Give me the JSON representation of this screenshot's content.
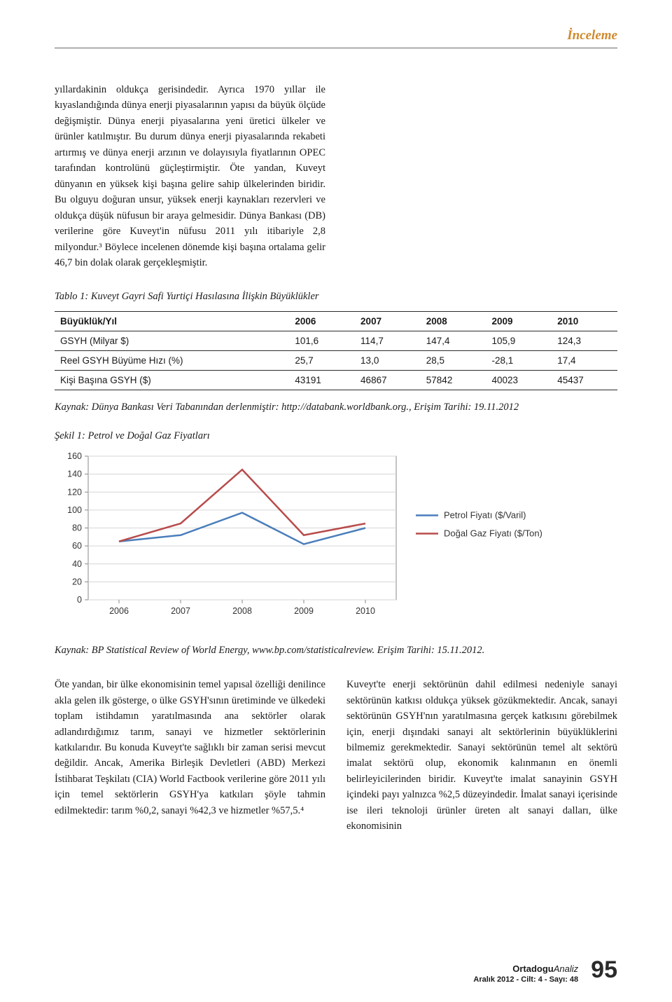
{
  "section_tag": "İnceleme",
  "para_top": "yıllardakinin oldukça gerisindedir. Ayrıca 1970 yıllar ile kıyaslandığında dünya enerji piyasalarının yapısı da büyük ölçüde değişmiştir. Dünya enerji piyasalarına yeni üretici ülkeler ve ürünler katılmıştır. Bu durum dünya enerji piyasalarında rekabeti artırmış ve dünya enerji arzının ve dolayısıyla fiyatlarının OPEC tarafından kontrolünü güçleştirmiştir. Öte yandan, Kuveyt dünyanın en yüksek kişi başına gelire sahip ülkelerinden biridir. Bu olguyu doğuran unsur, yüksek enerji kaynakları rezervleri ve oldukça düşük nüfusun bir araya gelmesidir. Dünya Bankası (DB) verilerine göre Kuveyt'in nüfusu 2011 yılı itibariyle 2,8 milyondur.³ Böylece incelenen dönemde kişi başına ortalama gelir 46,7 bin dolak olarak gerçekleşmiştir.",
  "table1": {
    "title": "Tablo 1: Kuveyt Gayri Safi Yurtiçi Hasılasına İlişkin Büyüklükler",
    "header_label": "Büyüklük/Yıl",
    "years": [
      "2006",
      "2007",
      "2008",
      "2009",
      "2010"
    ],
    "rows": [
      {
        "label": "GSYH (Milyar $)",
        "vals": [
          "101,6",
          "114,7",
          "147,4",
          "105,9",
          "124,3"
        ]
      },
      {
        "label": "Reel GSYH Büyüme Hızı (%)",
        "vals": [
          "25,7",
          "13,0",
          "28,5",
          "-28,1",
          "17,4"
        ]
      },
      {
        "label": "Kişi Başına GSYH ($)",
        "vals": [
          "43191",
          "46867",
          "57842",
          "40023",
          "45437"
        ]
      }
    ],
    "source": "Kaynak: Dünya Bankası Veri Tabanından derlenmiştir: http://databank.worldbank.org., Erişim Tarihi: 19.11.2012"
  },
  "figure1": {
    "title": "Şekil 1: Petrol ve Doğal Gaz Fiyatları",
    "type": "line",
    "x_categories": [
      "2006",
      "2007",
      "2008",
      "2009",
      "2010"
    ],
    "y_ticks": [
      0,
      20,
      40,
      60,
      80,
      100,
      120,
      140,
      160
    ],
    "ylim": [
      0,
      160
    ],
    "series": [
      {
        "name": "Petrol Fiyatı ($/Varil)",
        "color": "#4a7ebb",
        "width": 2.5,
        "values": [
          65,
          72,
          97,
          62,
          80
        ]
      },
      {
        "name": "Doğal Gaz Fiyatı ($/Ton)",
        "color": "#b84b4b",
        "width": 2.5,
        "values": [
          65,
          85,
          145,
          72,
          85
        ]
      }
    ],
    "plot_border_color": "#888888",
    "grid_color": "#d6d6d6",
    "background": "#ffffff",
    "axis_font_size": 12.5,
    "legend_font_size": 13,
    "source": "Kaynak: BP Statistical Review of World Energy, www.bp.com/statisticalreview. Erişim Tarihi: 15.11.2012."
  },
  "para_bottom_left": "Öte yandan, bir ülke ekonomisinin temel yapısal özelliği denilince akla gelen ilk gösterge, o ülke GSYH'sının üretiminde ve ülkedeki toplam istihdamın yaratılmasında ana sektörler olarak adlandırdığımız tarım, sanayi ve hizmetler sektörlerinin katkılarıdır. Bu konuda Kuveyt'te sağlıklı bir zaman serisi mevcut değildir. Ancak, Amerika Birleşik Devletleri (ABD) Merkezi İstihbarat Teşkilatı (CIA) World Factbook verilerine göre 2011 yılı için temel sektörlerin GSYH'ya katkıları şöyle tahmin edilmektedir: tarım %0,2, sanayi %42,3 ve hizmetler %57,5.⁴",
  "para_bottom_right": "Kuveyt'te enerji sektörünün dahil edilmesi nedeniyle sanayi sektörünün katkısı oldukça yüksek gözükmektedir. Ancak, sanayi sektörünün GSYH'nın yaratılmasına gerçek katkısını görebilmek için, enerji dışındaki sanayi alt sektörlerinin büyüklüklerini bilmemiz gerekmektedir. Sanayi sektörünün temel alt sektörü imalat sektörü olup, ekonomik kalınmanın en önemli belirleyicilerinden biridir. Kuveyt'te imalat sanayinin GSYH içindeki payı yalnızca %2,5 düzeyindedir. İmalat sanayi içerisinde ise ileri teknoloji ürünler üreten alt sanayi dalları, ülke ekonomisinin",
  "footer": {
    "brand_bold": "Ortadogu",
    "brand_italic": "Analiz",
    "issue": "Aralık 2012 - Cilt: 4 - Sayı: 48",
    "page": "95"
  }
}
